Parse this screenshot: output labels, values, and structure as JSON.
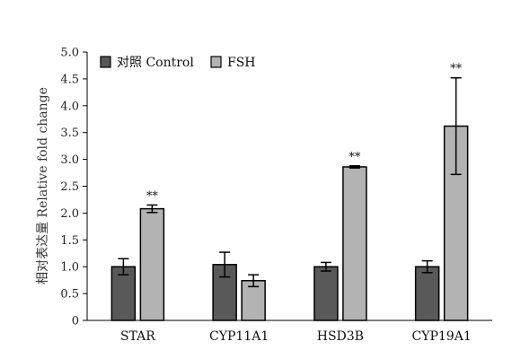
{
  "chart_data": {
    "type": "bar",
    "categories": [
      "STAR",
      "CYP11A1",
      "HSD3B",
      "CYP19A1"
    ],
    "series": [
      {
        "name": "对照 Control",
        "color": "#595959",
        "values": [
          1.0,
          1.04,
          1.0,
          1.0
        ],
        "errors": [
          0.15,
          0.23,
          0.08,
          0.11
        ],
        "significance": [
          "",
          "",
          "",
          ""
        ]
      },
      {
        "name": "FSH",
        "color": "#b3b3b3",
        "values": [
          2.08,
          0.74,
          2.86,
          3.62
        ],
        "errors": [
          0.07,
          0.11,
          0.02,
          0.9
        ],
        "significance": [
          "**",
          "",
          "**",
          "**"
        ]
      }
    ],
    "title": "",
    "xlabel": "",
    "ylabel": "相对表达量 Relative fold change",
    "ylim": [
      0,
      5.0
    ],
    "yticks": [
      "0",
      "0.5",
      "1.0",
      "1.5",
      "2.0",
      "2.5",
      "3.0",
      "3.5",
      "4.0",
      "4.5",
      "5.0"
    ],
    "grid": false,
    "legend_position": "top-left"
  }
}
